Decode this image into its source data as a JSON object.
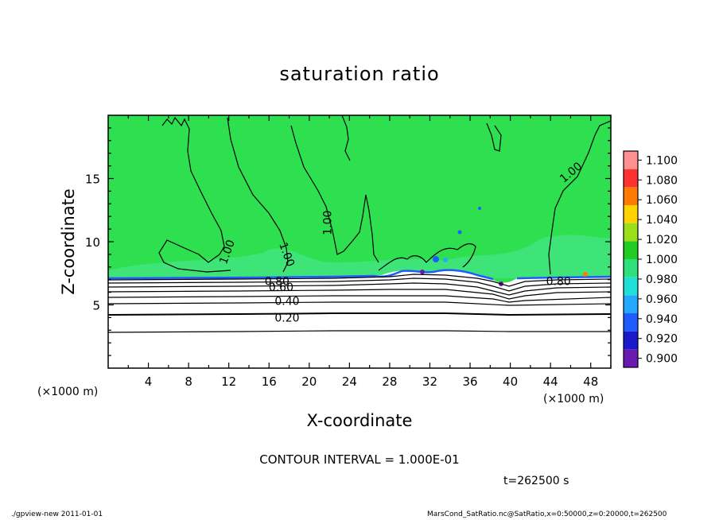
{
  "chart_data": {
    "type": "heatmap",
    "title": "saturation ratio",
    "xlabel": "X-coordinate",
    "ylabel": "Z-coordinate",
    "x_unit_label_left": "(×1000 m)",
    "x_unit_label_right": "(×1000 m)",
    "xlim": [
      0,
      50
    ],
    "ylim": [
      0,
      20
    ],
    "xticks": [
      4,
      8,
      12,
      16,
      20,
      24,
      28,
      32,
      36,
      40,
      44,
      48
    ],
    "yticks": [
      5,
      10,
      15
    ],
    "colorbar": {
      "levels": [
        "0.900",
        "0.920",
        "0.940",
        "0.960",
        "0.980",
        "1.000",
        "1.020",
        "1.040",
        "1.060",
        "1.080",
        "1.100"
      ],
      "colors": [
        "#6a1ab0",
        "#1a1acc",
        "#1e5cff",
        "#22a8ff",
        "#1fe0d8",
        "#2ee07a",
        "#22cc22",
        "#99e01a",
        "#ffd200",
        "#ff7a00",
        "#ff3030",
        "#ff9090"
      ]
    },
    "field_color": "#2ee04f",
    "contour_labels": [
      {
        "text": "1.00",
        "x": 11.8,
        "z": 9.2
      },
      {
        "text": "1.00",
        "x": 17.8,
        "z": 9.0
      },
      {
        "text": "1.00",
        "x": 21.8,
        "z": 11.5
      },
      {
        "text": "1.00",
        "x": 46.0,
        "z": 15.5
      },
      {
        "text": "0.80",
        "x": 44.8,
        "z": 6.9
      },
      {
        "text": "0.80",
        "x": 16.8,
        "z": 6.9
      },
      {
        "text": "0.60",
        "x": 17.2,
        "z": 6.4
      },
      {
        "text": "0.40",
        "x": 17.8,
        "z": 5.3
      },
      {
        "text": "0.20",
        "x": 17.8,
        "z": 4.0
      }
    ],
    "contour_interval_text": "CONTOUR INTERVAL = 1.000E-01",
    "time_text": "t=262500 s"
  },
  "footer": {
    "left": "./gpview-new  2011-01-01",
    "right": "MarsCond_SatRatio.nc@SatRatio,x=0:50000,z=0:20000,t=262500"
  }
}
